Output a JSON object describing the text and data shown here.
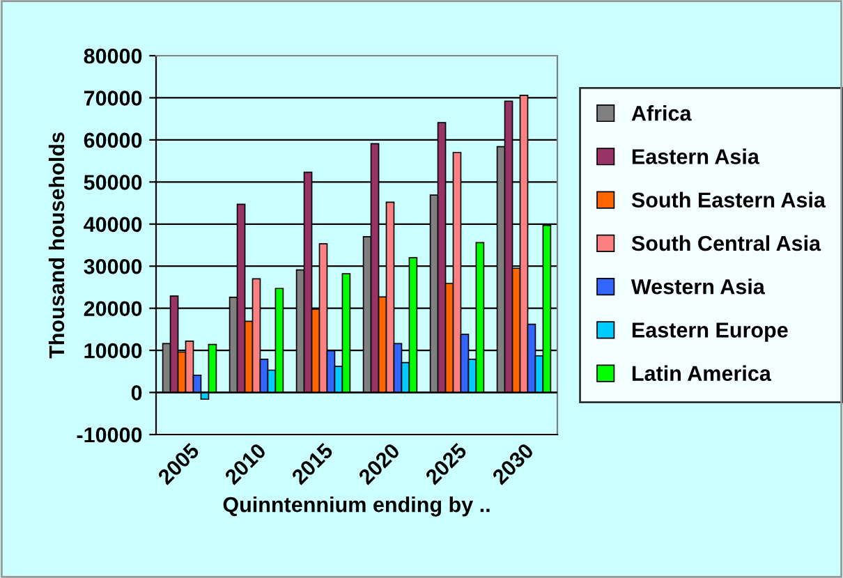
{
  "chart_data": {
    "type": "bar",
    "xlabel": "Quinntennium ending by ..",
    "ylabel": "Thousand households",
    "categories": [
      "2005",
      "2010",
      "2015",
      "2020",
      "2025",
      "2030"
    ],
    "series": [
      {
        "name": "Africa",
        "color": "#808080",
        "values": [
          11600,
          22600,
          29100,
          37000,
          46900,
          58400
        ]
      },
      {
        "name": "Eastern Asia",
        "color": "#993366",
        "values": [
          22900,
          44700,
          52300,
          59100,
          64100,
          69200
        ]
      },
      {
        "name": "South Eastern Asia",
        "color": "#ff6600",
        "values": [
          9600,
          16900,
          19800,
          22700,
          25900,
          29500
        ]
      },
      {
        "name": "South Central Asia",
        "color": "#ff8080",
        "values": [
          12200,
          27000,
          35300,
          45200,
          57000,
          70600
        ]
      },
      {
        "name": "Western Asia",
        "color": "#3366ff",
        "values": [
          4100,
          7900,
          9900,
          11600,
          13800,
          16200
        ]
      },
      {
        "name": "Eastern Europe",
        "color": "#00ccff",
        "values": [
          -1600,
          5300,
          6200,
          7100,
          7900,
          8700
        ]
      },
      {
        "name": "Latin America",
        "color": "#00ff00",
        "values": [
          11400,
          24700,
          28200,
          32000,
          35600,
          39700
        ]
      }
    ],
    "ylim": [
      -10000,
      80000
    ],
    "yticks": [
      -10000,
      0,
      10000,
      20000,
      30000,
      40000,
      50000,
      60000,
      70000,
      80000
    ],
    "grid": "y",
    "legend": "right"
  }
}
